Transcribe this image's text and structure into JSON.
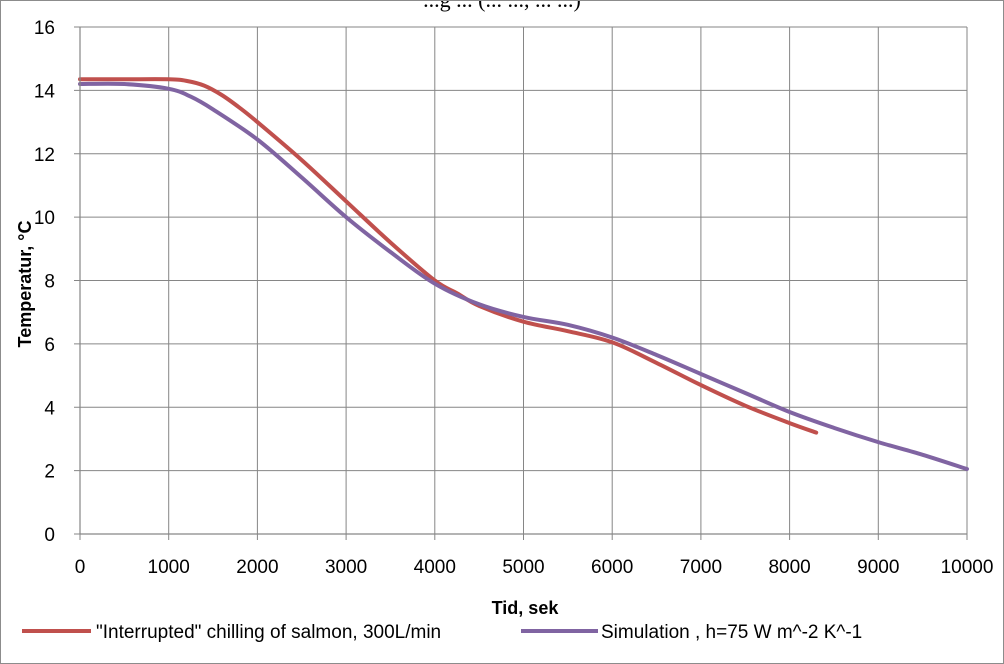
{
  "chart_data": {
    "type": "line",
    "title": "...g ... (... ..., ... ...)",
    "xlabel": "Tid, sek",
    "ylabel": "Temperatur, °C",
    "xlim": [
      0,
      10000
    ],
    "ylim": [
      0,
      16
    ],
    "x_ticks": [
      "0",
      "1000",
      "2000",
      "3000",
      "4000",
      "5000",
      "6000",
      "7000",
      "8000",
      "9000",
      "10000"
    ],
    "y_ticks": [
      "0",
      "2",
      "4",
      "6",
      "8",
      "10",
      "12",
      "14",
      "16"
    ],
    "grid": true,
    "legend_position": "bottom",
    "series": [
      {
        "name": "\"Interrupted\" chilling of salmon, 300L/min",
        "color": "#c0504d",
        "x": [
          0,
          500,
          1000,
          1200,
          1400,
          1600,
          1800,
          2000,
          2500,
          3000,
          3500,
          4000,
          4250,
          4500,
          5000,
          5500,
          6000,
          6500,
          7000,
          7500,
          8000,
          8300
        ],
        "y": [
          14.35,
          14.35,
          14.35,
          14.3,
          14.15,
          13.85,
          13.45,
          13.0,
          11.8,
          10.5,
          9.2,
          8.0,
          7.6,
          7.2,
          6.7,
          6.4,
          6.05,
          5.4,
          4.7,
          4.05,
          3.5,
          3.2
        ]
      },
      {
        "name": "Simulation , h=75 W m^-2 K^-1",
        "color": "#8064a2",
        "x": [
          0,
          500,
          1000,
          1250,
          1500,
          2000,
          2500,
          3000,
          3500,
          4000,
          4500,
          5000,
          5500,
          6000,
          6500,
          7000,
          7500,
          8000,
          8500,
          9000,
          9500,
          10000
        ],
        "y": [
          14.2,
          14.2,
          14.05,
          13.8,
          13.4,
          12.45,
          11.25,
          10.0,
          8.9,
          7.9,
          7.25,
          6.85,
          6.6,
          6.2,
          5.65,
          5.05,
          4.45,
          3.85,
          3.35,
          2.9,
          2.5,
          2.05
        ]
      }
    ]
  }
}
